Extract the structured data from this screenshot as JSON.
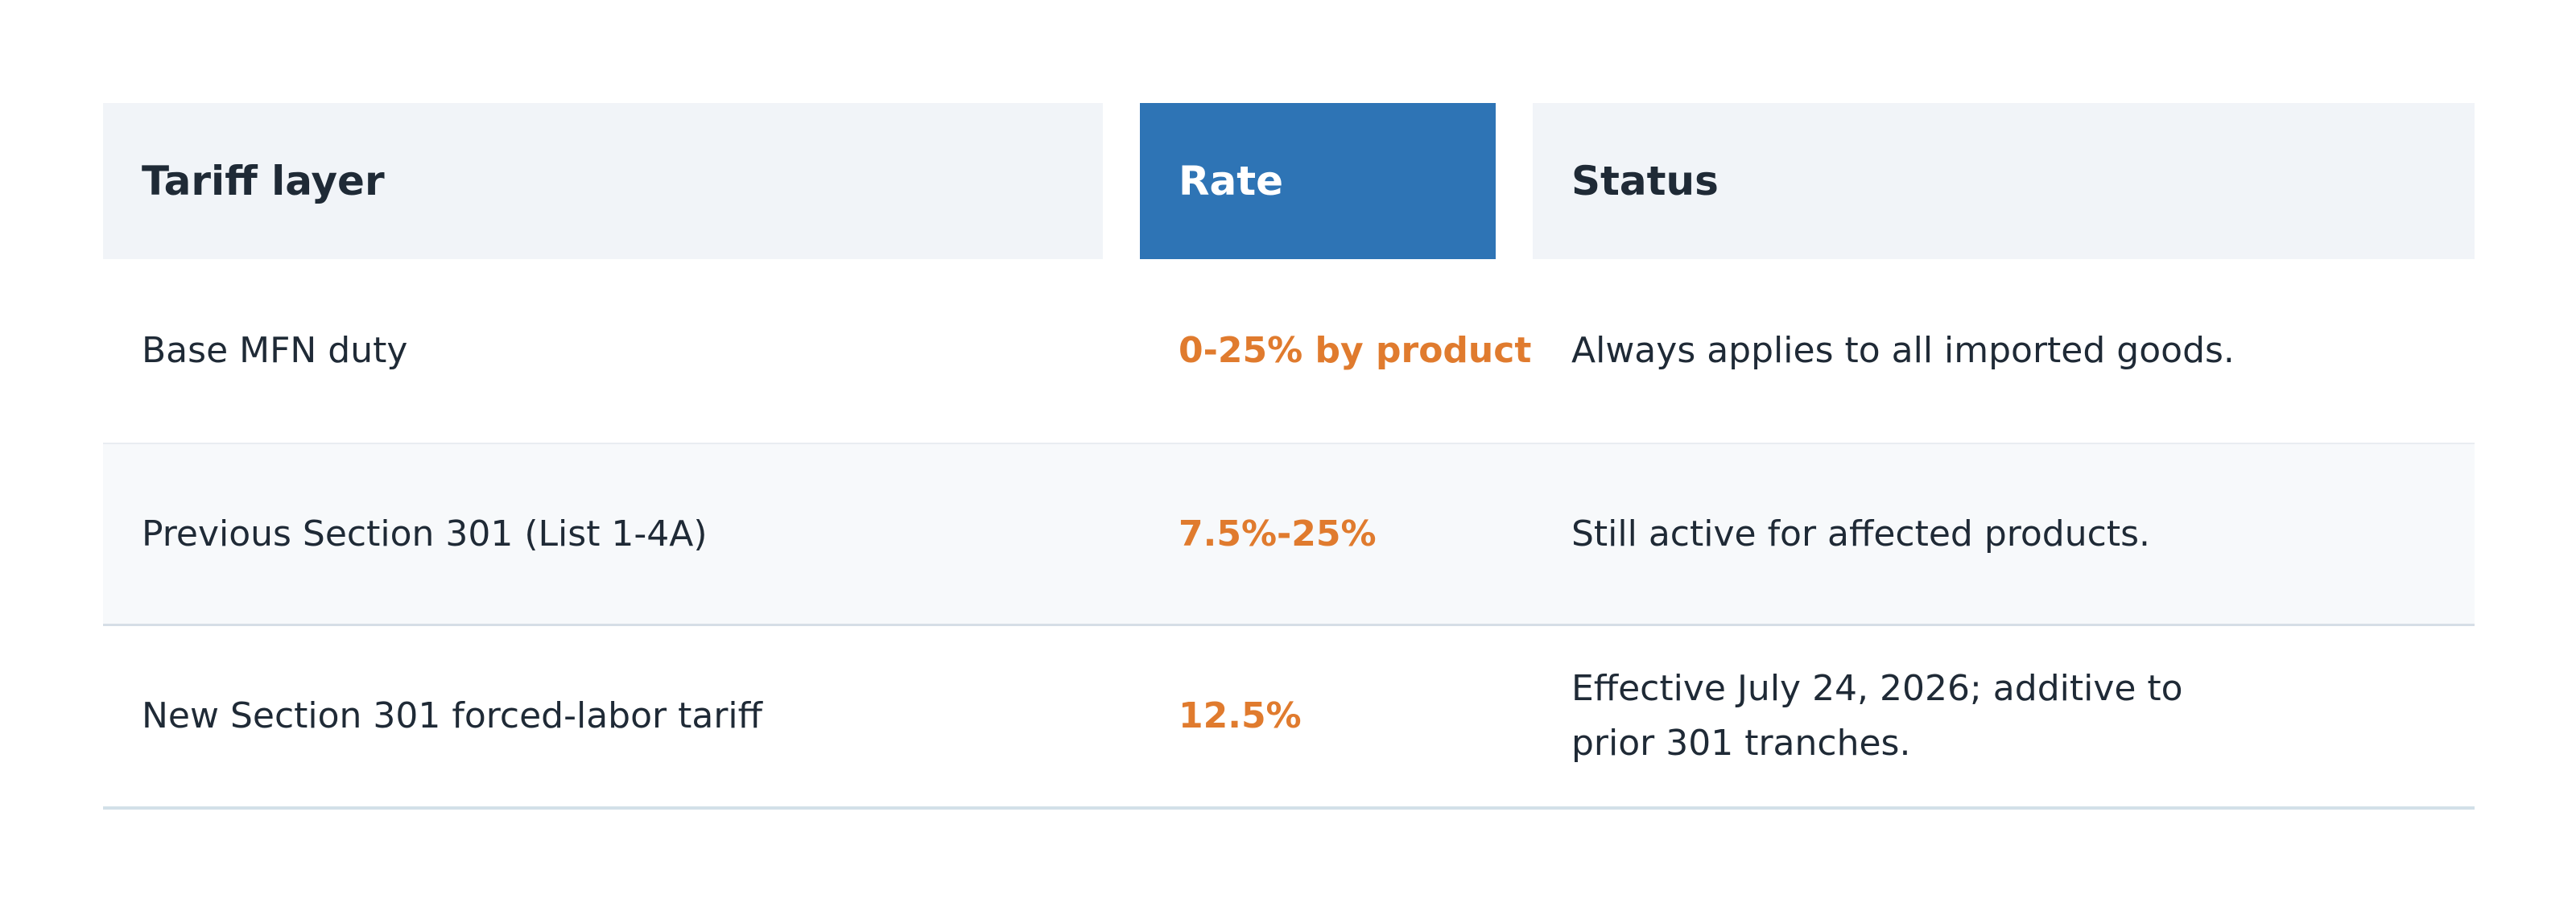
{
  "table": {
    "headers": {
      "layer": "Tariff layer",
      "rate": "Rate",
      "status": "Status"
    },
    "rows": [
      {
        "layer": "Base MFN duty",
        "rate": "0-25% by product",
        "status": "Always applies to all imported goods."
      },
      {
        "layer": "Previous Section 301 (List 1-4A)",
        "rate": "7.5%-25%",
        "status": "Still active for affected products."
      },
      {
        "layer": "New Section 301 forced-labor tariff",
        "rate": "12.5%",
        "status": "Effective July 24, 2026; additive to prior 301 tranches."
      }
    ]
  },
  "colors": {
    "header_bg": "#f1f4f8",
    "rate_header_bg": "#2e74b5",
    "rate_text": "#e07b2e",
    "body_text": "#1f2a36"
  }
}
